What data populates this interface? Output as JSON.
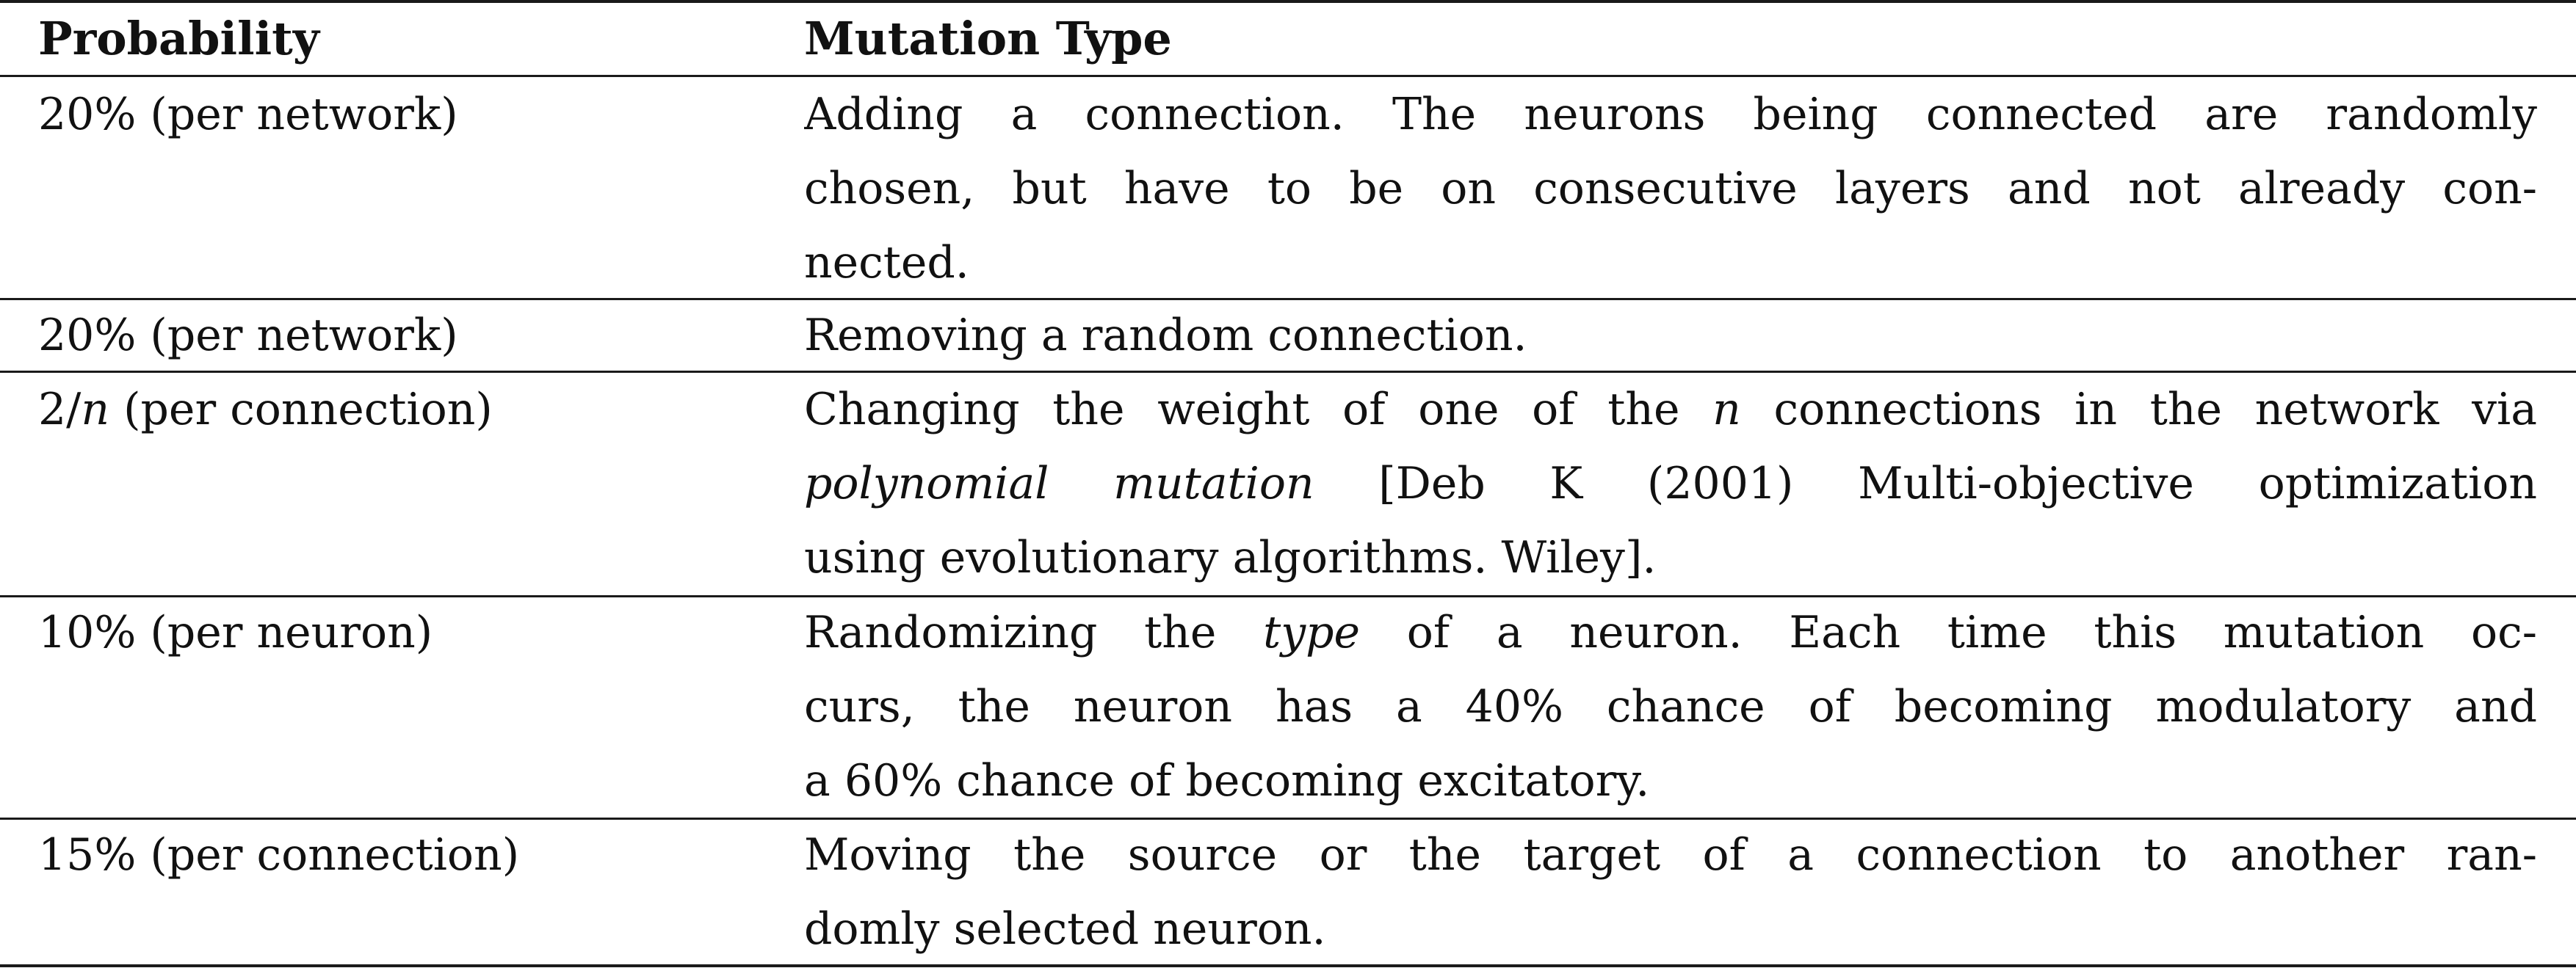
{
  "table": {
    "headers": {
      "probability": "Probability",
      "mutation_type": "Mutation Type"
    },
    "rows": [
      {
        "probability": "20% (per network)",
        "lines": [
          {
            "text": "Adding a connection. The neurons being connected are randomly"
          },
          {
            "text": "chosen, but have to be on consecutive layers and not already con-"
          },
          {
            "text": "nected."
          }
        ]
      },
      {
        "probability": "20% (per network)",
        "lines": [
          {
            "text": "Removing a random connection."
          }
        ]
      },
      {
        "probability_prefix": "2/",
        "probability_var": "n",
        "probability_suffix": " (per connection)",
        "lines": [
          {
            "pre": "Changing the weight of one of the ",
            "var": "n",
            "post": " connections in the network via"
          },
          {
            "it": "polynomial mutation",
            "post": " [Deb K (2001) Multi-objective optimization"
          },
          {
            "text": "using evolutionary algorithms. Wiley]."
          }
        ]
      },
      {
        "probability": "10% (per neuron)",
        "lines": [
          {
            "pre": "Randomizing the ",
            "it": "type",
            "post": " of a neuron. Each time this mutation oc-"
          },
          {
            "text": "curs, the neuron has a 40% chance of becoming modulatory and"
          },
          {
            "text": "a 60% chance of becoming excitatory."
          }
        ]
      },
      {
        "probability": "15% (per connection)",
        "lines": [
          {
            "text": "Moving the source or the target of a connection to another ran-"
          },
          {
            "text": "domly selected neuron."
          }
        ]
      }
    ]
  }
}
